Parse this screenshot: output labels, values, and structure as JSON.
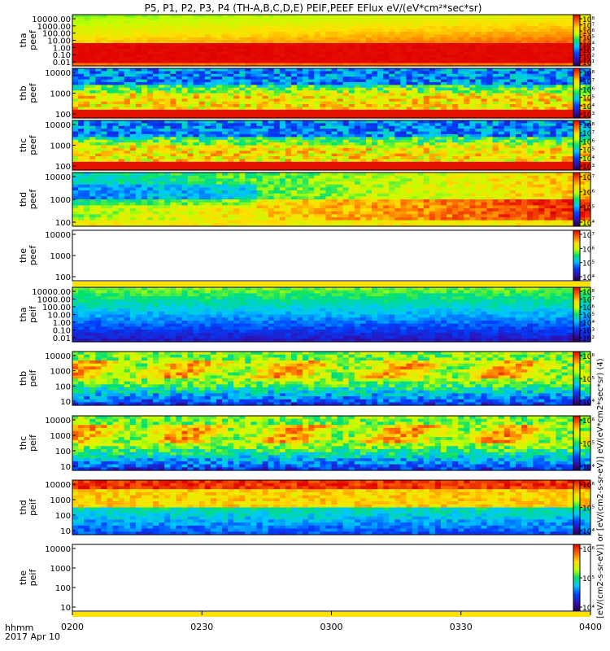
{
  "title": "P5, P1, P2, P3, P4 (TH-A,B,C,D,E) PEIF,PEEF EFlux eV/(eV*cm²*sec*sr)",
  "cbar_label": "[eV/(cm2-s-sr-eV)] or [eV/(cm2-s-sr-eV)] eV/(eV*cm2*sec*sr) (4)",
  "xaxis": {
    "prefix": "hhmm",
    "date": "2017 Apr 10",
    "ticks": [
      "0200",
      "0230",
      "0300",
      "0330",
      "0400"
    ]
  },
  "colors": {
    "frame": "#000000",
    "cbar_palette": "rainbow"
  },
  "chart_data": [
    {
      "type": "heatmap",
      "label1": "tha",
      "label2": "peef",
      "yticks": [
        "10000.00",
        "1000.00",
        "100.00",
        "10.00",
        "1.00",
        "0.10",
        "0.01"
      ],
      "cticks": [
        "10⁸",
        "10⁷",
        "10⁶",
        "10⁵",
        "10⁴",
        "10³",
        "10²",
        "10¹"
      ],
      "scheme": "thapeef"
    },
    {
      "type": "heatmap",
      "label1": "thb",
      "label2": "peef",
      "yticks": [
        "10000",
        "1000",
        "100"
      ],
      "cticks": [
        "10⁸",
        "10⁷",
        "10⁶",
        "10⁵",
        "10⁴",
        "10³"
      ],
      "scheme": "peef_band"
    },
    {
      "type": "heatmap",
      "label1": "thc",
      "label2": "peef",
      "yticks": [
        "10000",
        "1000",
        "100"
      ],
      "cticks": [
        "10⁸",
        "10⁷",
        "10⁶",
        "10⁵",
        "10⁴",
        "10³"
      ],
      "scheme": "peef_band"
    },
    {
      "type": "heatmap",
      "label1": "thd",
      "label2": "peef",
      "yticks": [
        "10000",
        "1000",
        "100"
      ],
      "cticks": [
        "10⁷",
        "10⁶",
        "10⁵",
        "10⁴"
      ],
      "scheme": "thdpeef"
    },
    {
      "type": "heatmap",
      "label1": "the",
      "label2": "peef",
      "yticks": [
        "10000",
        "1000",
        "100"
      ],
      "cticks": [
        "10⁷",
        "10⁶",
        "10⁵",
        "10⁴"
      ],
      "scheme": "empty"
    },
    {
      "type": "heatmap",
      "label1": "tha",
      "label2": "peif",
      "yticks": [
        "10000.00",
        "1000.00",
        "100.00",
        "10.00",
        "1.00",
        "0.10",
        "0.01"
      ],
      "cticks": [
        "10⁸",
        "10⁷",
        "10⁶",
        "10⁵",
        "10⁴",
        "10³",
        "10²"
      ],
      "scheme": "thapeif"
    },
    {
      "type": "heatmap",
      "label1": "thb",
      "label2": "peif",
      "yticks": [
        "10000",
        "1000",
        "100",
        "10"
      ],
      "cticks": [
        "10⁶",
        "10⁵",
        "10⁴"
      ],
      "scheme": "peif"
    },
    {
      "type": "heatmap",
      "label1": "thc",
      "label2": "peif",
      "yticks": [
        "10000",
        "1000",
        "100",
        "10"
      ],
      "cticks": [
        "10⁶",
        "10⁵",
        "10⁴"
      ],
      "scheme": "peif"
    },
    {
      "type": "heatmap",
      "label1": "thd",
      "label2": "peif",
      "yticks": [
        "10000",
        "1000",
        "100",
        "10"
      ],
      "cticks": [
        "10⁶",
        "10⁵",
        "10⁴"
      ],
      "scheme": "thdpeif"
    },
    {
      "type": "heatmap",
      "label1": "the",
      "label2": "peif",
      "yticks": [
        "10000",
        "1000",
        "100",
        "10"
      ],
      "cticks": [
        "10⁶",
        "10⁵",
        "10⁴"
      ],
      "scheme": "empty"
    }
  ]
}
